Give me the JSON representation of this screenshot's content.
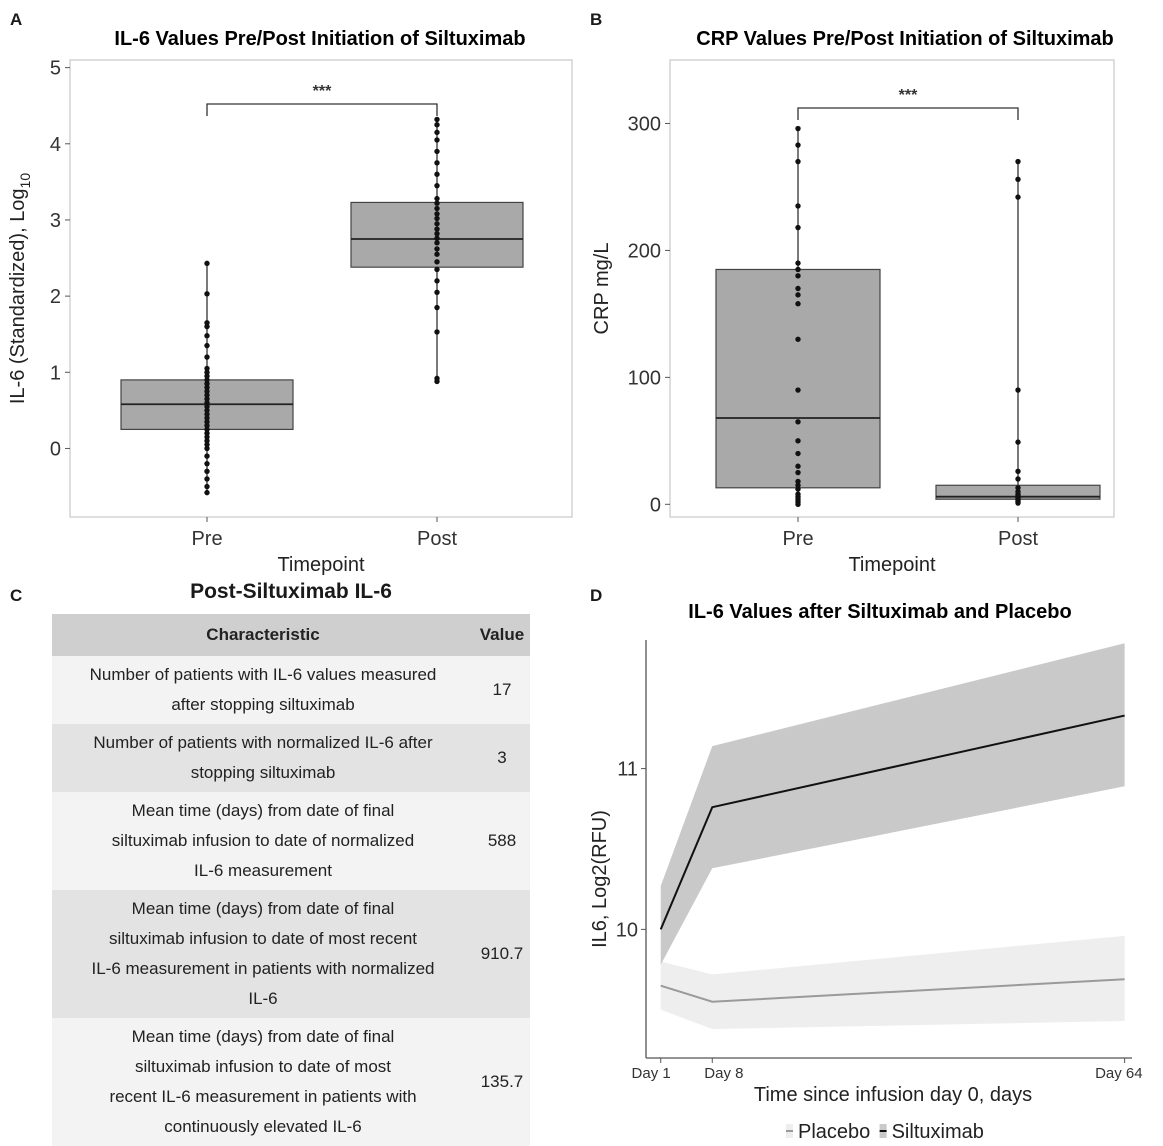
{
  "chart_data": [
    {
      "panel": "A",
      "type": "box",
      "title": "IL-6 Values Pre/Post Initiation of Siltuximab",
      "xlabel": "Timepoint",
      "ylabel": "IL-6 (Standardized), Log",
      "ylabel_sub": "10",
      "ylim": [
        -0.9,
        5.1
      ],
      "yticks": [
        0,
        1,
        2,
        3,
        4,
        5
      ],
      "categories": [
        "Pre",
        "Post"
      ],
      "boxes": [
        {
          "q1": 0.25,
          "median": 0.58,
          "q3": 0.9
        },
        {
          "q1": 2.38,
          "median": 2.75,
          "q3": 3.23
        }
      ],
      "points": [
        [
          -0.58,
          -0.5,
          -0.4,
          -0.3,
          -0.2,
          -0.1,
          0.0,
          0.05,
          0.1,
          0.15,
          0.2,
          0.25,
          0.3,
          0.35,
          0.4,
          0.45,
          0.5,
          0.55,
          0.6,
          0.65,
          0.7,
          0.75,
          0.8,
          0.85,
          0.9,
          0.95,
          1.0,
          1.05,
          1.2,
          1.35,
          1.48,
          1.6,
          1.65,
          2.03,
          2.43
        ],
        [
          0.88,
          0.92,
          1.53,
          1.85,
          2.05,
          2.2,
          2.35,
          2.45,
          2.55,
          2.62,
          2.7,
          2.76,
          2.82,
          2.88,
          2.95,
          3.02,
          3.08,
          3.15,
          3.22,
          3.28,
          3.45,
          3.6,
          3.75,
          3.9,
          4.05,
          4.15,
          4.25,
          4.32
        ]
      ],
      "significance": "***"
    },
    {
      "panel": "B",
      "type": "box",
      "title": "CRP Values Pre/Post Initiation of Siltuximab",
      "xlabel": "Timepoint",
      "ylabel": "CRP mg/L",
      "ylim": [
        -10,
        350
      ],
      "yticks": [
        0,
        100,
        200,
        300
      ],
      "categories": [
        "Pre",
        "Post"
      ],
      "boxes": [
        {
          "q1": 13,
          "median": 68,
          "q3": 185
        },
        {
          "q1": 4,
          "median": 6,
          "q3": 15
        }
      ],
      "points": [
        [
          0,
          2,
          4,
          6,
          8,
          12,
          15,
          18,
          25,
          30,
          40,
          50,
          65,
          90,
          130,
          158,
          165,
          170,
          180,
          185,
          190,
          218,
          235,
          270,
          283,
          296
        ],
        [
          1,
          2,
          3,
          4,
          5,
          6,
          7,
          8,
          10,
          13,
          20,
          26,
          49,
          90,
          242,
          256,
          270
        ]
      ],
      "significance": "***"
    },
    {
      "panel": "D",
      "type": "line",
      "title": "IL-6 Values after Siltuximab and Placebo",
      "xlabel": "Time since infusion day 0, days",
      "ylabel": "IL6, Log2(RFU)",
      "xlim": [
        -1,
        65
      ],
      "ylim": [
        9.2,
        11.8
      ],
      "yticks": [
        10,
        11
      ],
      "xticks": [
        1,
        8,
        64
      ],
      "xtick_labels": [
        "Day 1",
        "Day 8",
        "Day 64"
      ],
      "x": [
        1,
        8,
        64
      ],
      "series": [
        {
          "name": "Placebo",
          "values": [
            9.65,
            9.55,
            9.69
          ],
          "lower": [
            9.5,
            9.38,
            9.43
          ],
          "upper": [
            9.8,
            9.72,
            9.96
          ],
          "line_color": "#9a9a9a",
          "band_color": "#eeeeee"
        },
        {
          "name": "Siltuximab",
          "values": [
            10.0,
            10.76,
            11.33
          ],
          "lower": [
            9.78,
            10.38,
            10.89
          ],
          "upper": [
            10.27,
            11.14,
            11.78
          ],
          "line_color": "#111111",
          "band_color": "#c9c9c9"
        }
      ]
    }
  ],
  "panels": {
    "a": "A",
    "b": "B",
    "c": "C",
    "d": "D"
  },
  "table": {
    "title": "Post-Siltuximab IL-6",
    "headers": [
      "Characteristic",
      "Value"
    ],
    "rows": [
      {
        "lines": [
          "Number of patients with IL-6 values measured",
          "after stopping siltuximab"
        ],
        "value": "17"
      },
      {
        "lines": [
          "Number of patients with normalized IL-6 after",
          "stopping siltuximab"
        ],
        "value": "3"
      },
      {
        "lines": [
          "Mean time (days) from date of final",
          "siltuximab infusion to date of normalized",
          "IL-6 measurement"
        ],
        "value": "588"
      },
      {
        "lines": [
          "Mean time (days) from date of final",
          "siltuximab infusion to date of most recent",
          "IL-6 measurement in patients with normalized",
          "IL-6"
        ],
        "value": "910.7"
      },
      {
        "lines": [
          "Mean time (days) from date of final",
          "siltuximab infusion to date of most",
          "recent IL-6 measurement in patients with",
          "continuously elevated IL-6"
        ],
        "value": "135.7"
      }
    ]
  },
  "colors": {
    "box_fill": "#a9a9a9",
    "panel_border": "#d4d4d4",
    "header_bg": "#cfcfcf"
  }
}
